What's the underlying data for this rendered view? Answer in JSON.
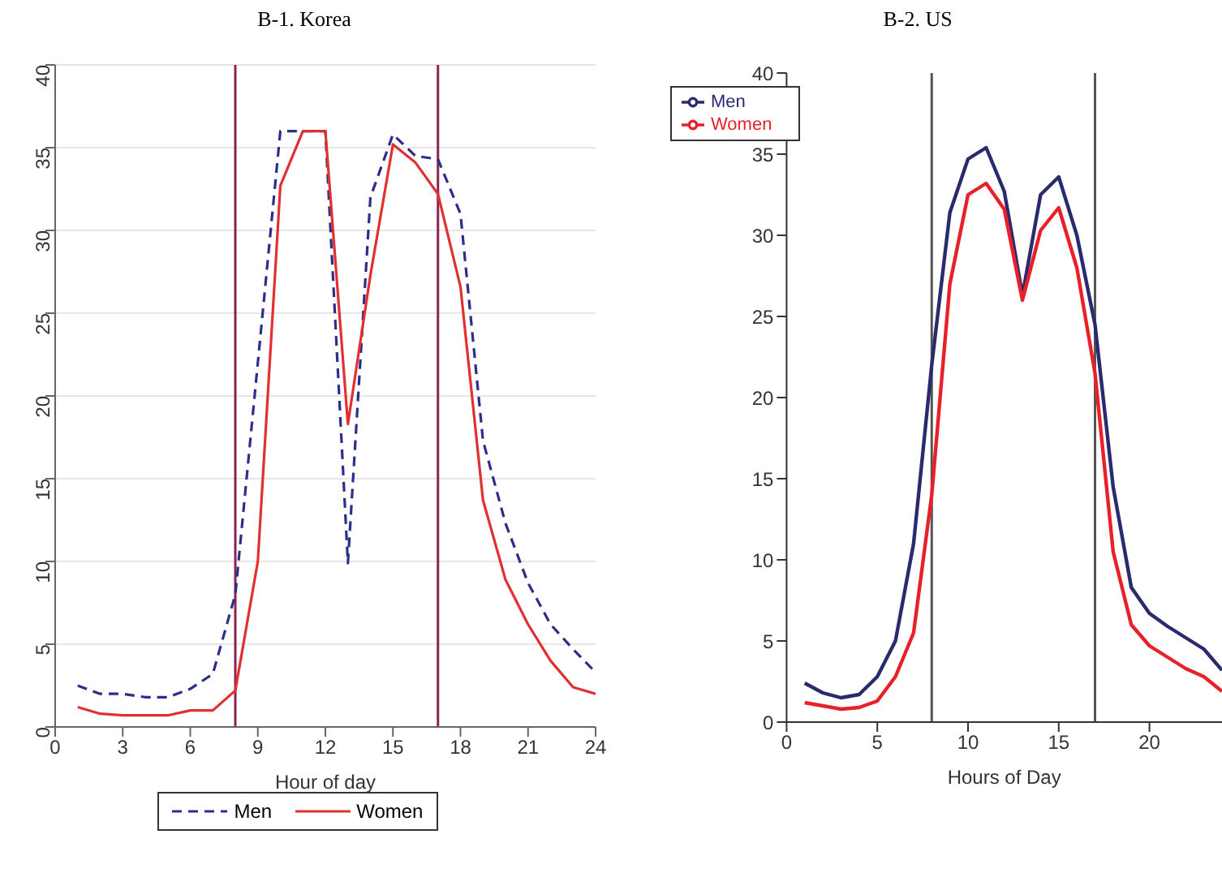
{
  "chart_data": [
    {
      "type": "line",
      "title": "B-1. Korea",
      "xlabel": "Hour of day",
      "x": [
        1,
        2,
        3,
        4,
        5,
        6,
        7,
        8,
        9,
        10,
        11,
        12,
        13,
        14,
        15,
        16,
        17,
        18,
        19,
        20,
        21,
        22,
        23,
        24
      ],
      "xlim": [
        0,
        24
      ],
      "xticks": [
        0,
        3,
        6,
        9,
        12,
        15,
        18,
        21,
        24
      ],
      "ylim": [
        0,
        40
      ],
      "yticks": [
        0,
        5,
        10,
        15,
        20,
        25,
        30,
        35,
        40
      ],
      "grid": "y",
      "legend": "bottom",
      "marker": "none",
      "ref_lines": [
        {
          "axis": "x",
          "value": 8,
          "color": "#8b2252"
        },
        {
          "axis": "x",
          "value": 17,
          "color": "#8b2252"
        }
      ],
      "series": [
        {
          "name": "Men",
          "color": "#2b2f8a",
          "line_style": "dashed",
          "values": [
            2.5,
            2.0,
            2.0,
            1.8,
            1.8,
            2.3,
            3.2,
            8,
            22,
            36,
            36,
            36,
            9.9,
            32,
            35.8,
            34.5,
            34.3,
            31,
            17.3,
            12.3,
            8.7,
            6.2,
            4.7,
            3.3
          ]
        },
        {
          "name": "Women",
          "color": "#e03030",
          "line_style": "solid",
          "values": [
            1.2,
            0.8,
            0.7,
            0.7,
            0.7,
            1.0,
            1.0,
            2.2,
            10,
            32.7,
            36,
            36,
            18.3,
            27.3,
            35.2,
            34.1,
            32.2,
            26.6,
            13.7,
            8.9,
            6.2,
            4,
            2.4,
            2.0
          ]
        }
      ]
    },
    {
      "type": "line",
      "title": "B-2. US",
      "xlabel": "Hours of Day",
      "x": [
        1,
        2,
        3,
        4,
        5,
        6,
        7,
        8,
        9,
        10,
        11,
        12,
        13,
        14,
        15,
        16,
        17,
        18,
        19,
        20,
        21,
        22,
        23,
        24
      ],
      "xlim": [
        0,
        24
      ],
      "xticks": [
        0,
        5,
        10,
        15,
        20
      ],
      "ylim": [
        0,
        40
      ],
      "yticks": [
        0,
        5,
        10,
        15,
        20,
        25,
        30,
        35,
        40
      ],
      "grid": false,
      "legend": "top left",
      "marker": "none",
      "ref_lines": [
        {
          "axis": "x",
          "value": 8,
          "color": "#555555"
        },
        {
          "axis": "x",
          "value": 17,
          "color": "#555555"
        }
      ],
      "series": [
        {
          "name": "Men",
          "color": "#2a2a6e",
          "line_style": "solid",
          "values": [
            2.4,
            1.8,
            1.5,
            1.7,
            2.8,
            5,
            11,
            22,
            31.4,
            34.7,
            35.4,
            32.7,
            26.3,
            32.5,
            33.6,
            30,
            24.5,
            14.5,
            8.3,
            6.7,
            5.9,
            5.2,
            4.5,
            3.2
          ]
        },
        {
          "name": "Women",
          "color": "#e8202a",
          "line_style": "solid",
          "values": [
            1.2,
            1.0,
            0.8,
            0.9,
            1.3,
            2.8,
            5.5,
            14,
            27,
            32.5,
            33.2,
            31.6,
            26,
            30.3,
            31.7,
            28,
            21.5,
            10.5,
            6,
            4.7,
            4.0,
            3.3,
            2.8,
            1.9
          ]
        }
      ]
    }
  ]
}
